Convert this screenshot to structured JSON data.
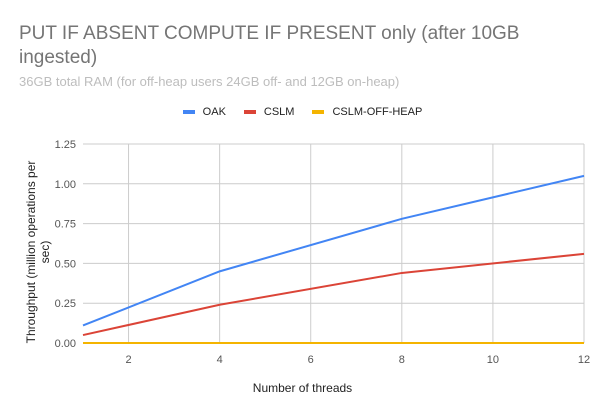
{
  "title": "PUT IF ABSENT COMPUTE IF PRESENT only (after 10GB ingested)",
  "subtitle": "36GB total RAM (for off-heap users 24GB off- and 12GB on-heap)",
  "legend": [
    {
      "label": "OAK",
      "color": "#4285f4"
    },
    {
      "label": "CSLM",
      "color": "#db4437"
    },
    {
      "label": "CSLM-OFF-HEAP",
      "color": "#f4b400"
    }
  ],
  "axes": {
    "xlabel": "Number of threads",
    "ylabel": "Throughput (million operations per sec)",
    "xticks": [
      "2",
      "4",
      "6",
      "8",
      "10",
      "12"
    ],
    "yticks": [
      "0.00",
      "0.25",
      "0.50",
      "0.75",
      "1.00",
      "1.25"
    ]
  },
  "chart_data": {
    "type": "line",
    "title": "PUT IF ABSENT COMPUTE IF PRESENT only (after 10GB ingested)",
    "subtitle": "36GB total RAM (for off-heap users 24GB off- and 12GB on-heap)",
    "xlabel": "Number of threads",
    "ylabel": "Throughput (million operations per sec)",
    "x": [
      1,
      4,
      8,
      12
    ],
    "series": [
      {
        "name": "OAK",
        "color": "#4285f4",
        "values": [
          0.11,
          0.45,
          0.78,
          1.05
        ]
      },
      {
        "name": "CSLM",
        "color": "#db4437",
        "values": [
          0.05,
          0.24,
          0.44,
          0.56
        ]
      },
      {
        "name": "CSLM-OFF-HEAP",
        "color": "#f4b400",
        "values": [
          0.0,
          0.0,
          0.0,
          0.0
        ]
      }
    ],
    "xlim": [
      1,
      12
    ],
    "ylim": [
      0,
      1.25
    ],
    "xticks": [
      2,
      4,
      6,
      8,
      10,
      12
    ],
    "yticks": [
      0,
      0.25,
      0.5,
      0.75,
      1.0,
      1.25
    ],
    "grid": true,
    "legend_position": "top"
  }
}
